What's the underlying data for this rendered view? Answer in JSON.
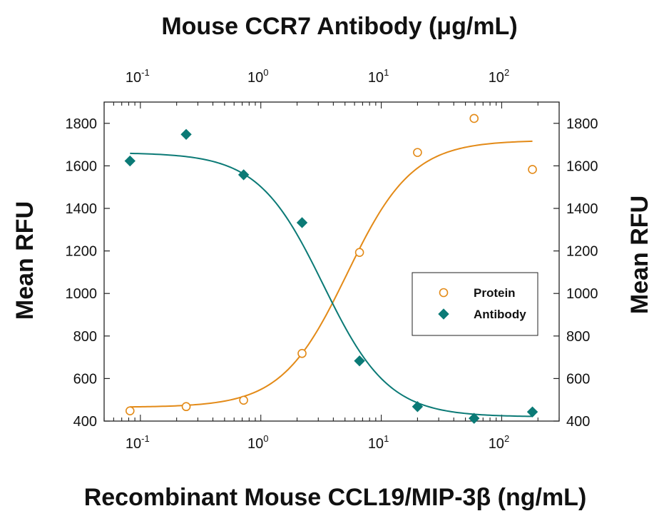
{
  "chart_data": {
    "type": "scatter",
    "title": "Mouse CCR7 Antibody (μg/mL)",
    "xlabel": "Recombinant Mouse CCL19/MIP-3β (ng/mL)",
    "ylabel": "Mean RFU",
    "ylabel_right": "Mean RFU",
    "x_scale": "log",
    "xlim": [
      0.05,
      300
    ],
    "ylim": [
      400,
      1900
    ],
    "y_ticks": [
      400,
      600,
      800,
      1000,
      1200,
      1400,
      1600,
      1800
    ],
    "x_ticks": [
      {
        "value": 0.1,
        "base": "10",
        "exp": "-1"
      },
      {
        "value": 1,
        "base": "10",
        "exp": "0"
      },
      {
        "value": 10,
        "base": "10",
        "exp": "1"
      },
      {
        "value": 100,
        "base": "10",
        "exp": "2"
      }
    ],
    "legend_position": "right",
    "grid": false,
    "series": [
      {
        "name": "Protein",
        "marker": "open-circle",
        "color": "#e38a17",
        "x": [
          0.082,
          0.24,
          0.72,
          2.2,
          6.6,
          20,
          59,
          180
        ],
        "y": [
          448,
          468,
          498,
          718,
          1193,
          1663,
          1823,
          1583
        ],
        "fit": {
          "bottom": 465,
          "top": 1720,
          "ec50": 5.2,
          "hill": 1.6
        }
      },
      {
        "name": "Antibody",
        "marker": "filled-diamond",
        "color": "#0b7a76",
        "x": [
          0.082,
          0.24,
          0.72,
          2.2,
          6.6,
          20,
          59,
          180
        ],
        "y": [
          1623,
          1748,
          1558,
          1333,
          683,
          468,
          413,
          443
        ],
        "fit": {
          "bottom": 420,
          "top": 1662,
          "ec50": 3.3,
          "hill": 1.6
        }
      }
    ]
  }
}
